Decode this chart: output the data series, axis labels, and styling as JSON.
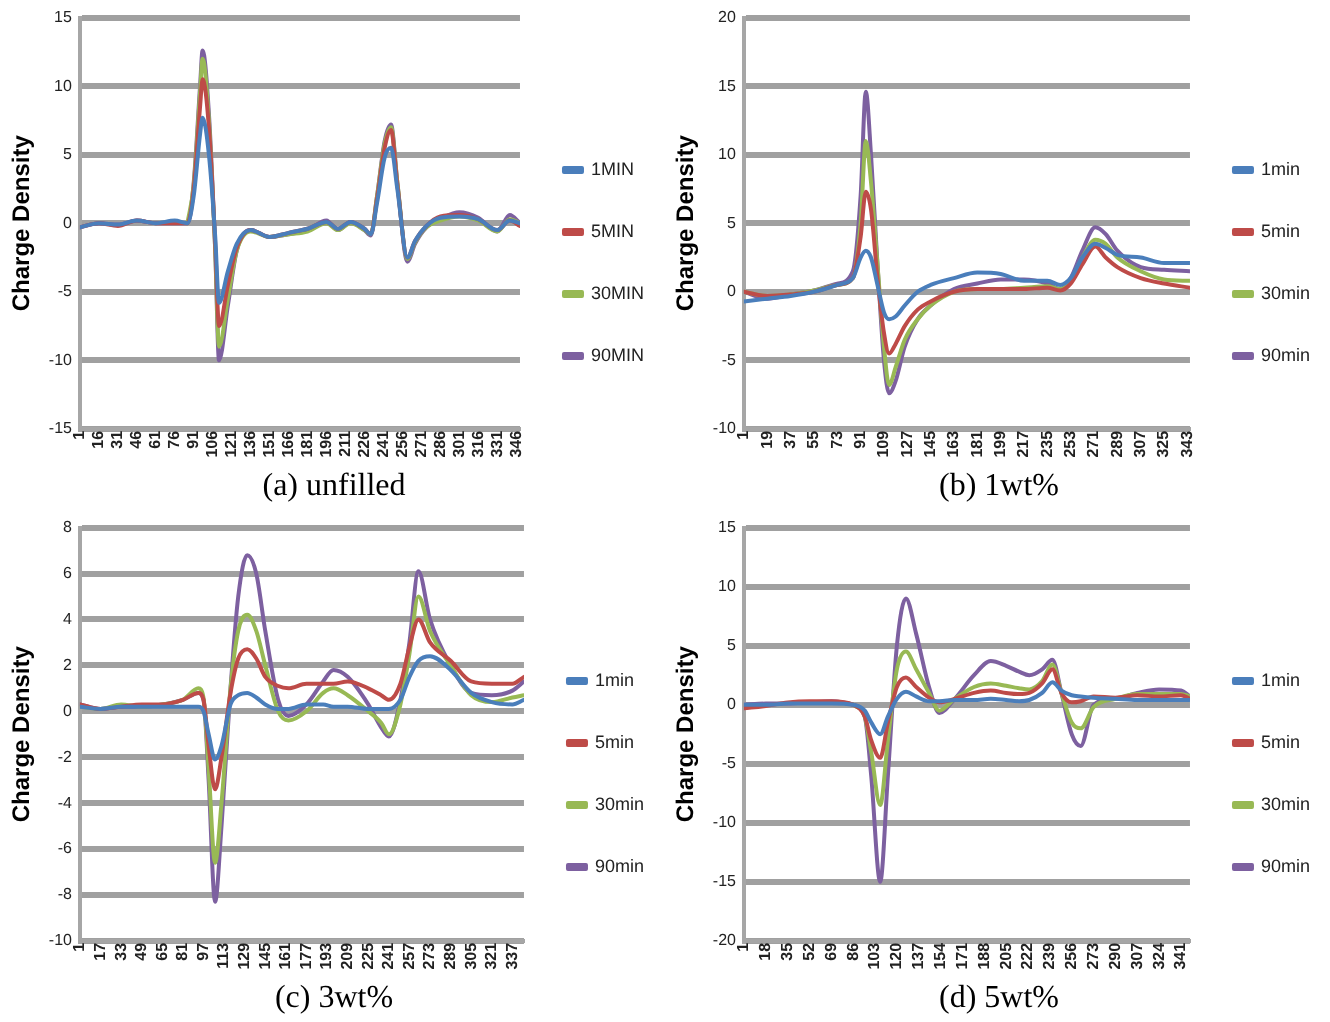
{
  "chart_data": [
    {
      "type": "line",
      "title": "(a) unfilled",
      "ylabel": "Charge Density",
      "grid": "y",
      "legend": "right",
      "marker": "none",
      "line_style": "solid",
      "x": [
        1,
        16,
        31,
        46,
        61,
        76,
        86,
        91,
        96,
        98,
        103,
        108,
        111,
        118,
        125,
        136,
        151,
        166,
        181,
        196,
        205,
        215,
        226,
        231,
        236,
        242,
        247,
        252,
        260,
        266,
        275,
        286,
        301,
        316,
        331,
        341,
        349
      ],
      "xlim": [
        1,
        349
      ],
      "xticks": [
        1,
        16,
        31,
        46,
        61,
        76,
        91,
        106,
        121,
        136,
        151,
        166,
        181,
        196,
        211,
        226,
        241,
        256,
        271,
        286,
        301,
        316,
        331,
        346
      ],
      "ylim": [
        -15,
        15
      ],
      "yticks": [
        -15,
        -10,
        -5,
        0,
        5,
        10,
        15
      ],
      "series": [
        {
          "name": "1MIN",
          "color": "#4a7ebb",
          "values": [
            -0.3,
            0,
            -0.1,
            0.2,
            0,
            0.2,
            0,
            2,
            6.5,
            7.7,
            5,
            -1,
            -5.8,
            -3.5,
            -1.5,
            -0.5,
            -1,
            -0.7,
            -0.4,
            0.1,
            -0.4,
            0.1,
            -0.4,
            -0.8,
            1.5,
            4.8,
            5.5,
            2.5,
            -2.5,
            -1.3,
            -0.2,
            0.4,
            0.5,
            0.3,
            -0.5,
            0.2,
            0
          ]
        },
        {
          "name": "5MIN",
          "color": "#be4b48",
          "values": [
            -0.3,
            0,
            -0.2,
            0.2,
            0,
            0,
            0,
            2.5,
            8.5,
            10.5,
            7,
            -1.5,
            -7.5,
            -4.5,
            -1.8,
            -0.5,
            -1,
            -0.7,
            -0.4,
            0.1,
            -0.4,
            0.1,
            -0.4,
            -0.8,
            1.8,
            5.5,
            6.8,
            2.8,
            -2.5,
            -1.3,
            -0.2,
            0.5,
            0.6,
            0.3,
            -0.5,
            0.2,
            -0.2
          ]
        },
        {
          "name": "30MIN",
          "color": "#98b954",
          "values": [
            null,
            null,
            null,
            null,
            null,
            null,
            0,
            2.8,
            9.5,
            12,
            7.5,
            -2,
            -9,
            -5.5,
            -2,
            -0.6,
            -1,
            -0.8,
            -0.6,
            0,
            -0.5,
            0,
            -0.5,
            -0.8,
            2,
            5.8,
            7,
            3,
            -2.6,
            -1.4,
            -0.3,
            0.2,
            0.5,
            0.2,
            -0.6,
            0.3,
            0
          ]
        },
        {
          "name": "90MIN",
          "color": "#7d60a0",
          "values": [
            -0.3,
            0,
            -0.1,
            0.2,
            0,
            0,
            0,
            3,
            10,
            12.6,
            8,
            -2,
            -10,
            -6,
            -2,
            -0.5,
            -1,
            -0.8,
            -0.5,
            0.2,
            -0.5,
            0.1,
            -0.5,
            -0.9,
            2,
            6,
            7.2,
            3,
            -2.8,
            -1.5,
            -0.3,
            0.3,
            0.8,
            0.4,
            -0.6,
            0.6,
            0
          ]
        }
      ]
    },
    {
      "type": "line",
      "title": "(b) 1wt%",
      "ylabel": "Charge Density",
      "grid": "y",
      "legend": "right",
      "marker": "none",
      "line_style": "solid",
      "x": [
        1,
        19,
        37,
        55,
        73,
        85,
        91,
        95,
        99,
        104,
        109,
        113,
        118,
        125,
        135,
        145,
        163,
        181,
        199,
        217,
        235,
        245,
        253,
        262,
        272,
        280,
        289,
        307,
        325,
        345
      ],
      "xlim": [
        1,
        345
      ],
      "xticks": [
        1,
        19,
        37,
        55,
        73,
        91,
        109,
        127,
        145,
        163,
        181,
        199,
        217,
        235,
        253,
        271,
        289,
        307,
        325,
        343
      ],
      "ylim": [
        -10,
        20
      ],
      "yticks": [
        -10,
        -5,
        0,
        5,
        10,
        15,
        20
      ],
      "series": [
        {
          "name": "1min",
          "color": "#4a7ebb",
          "values": [
            -0.7,
            -0.5,
            -0.3,
            0,
            0.5,
            1,
            2.5,
            3,
            2.5,
            0.5,
            -1.5,
            -2,
            -1.8,
            -1,
            0,
            0.5,
            1,
            1.4,
            1.3,
            0.8,
            0.8,
            0.5,
            1,
            2.5,
            3.5,
            3.2,
            2.7,
            2.5,
            2.1,
            2.1
          ]
        },
        {
          "name": "5min",
          "color": "#be4b48",
          "values": [
            0,
            -0.3,
            -0.2,
            0,
            0.5,
            1,
            4,
            7.3,
            6,
            1,
            -3,
            -4.5,
            -3.8,
            -2.5,
            -1.3,
            -0.7,
            0,
            0.2,
            0.2,
            0.2,
            0.3,
            0.1,
            0.6,
            2,
            3.3,
            2.5,
            1.8,
            1,
            0.6,
            0.3
          ]
        },
        {
          "name": "30min",
          "color": "#98b954",
          "values": [
            0,
            -0.3,
            -0.2,
            0.1,
            0.5,
            1,
            5,
            11,
            8,
            2,
            -4,
            -6.8,
            -5.5,
            -3.5,
            -2,
            -1,
            0,
            0.2,
            0.2,
            0.3,
            0.4,
            0.2,
            0.8,
            2.5,
            3.8,
            3.5,
            2.5,
            1.5,
            0.9,
            0.8
          ]
        },
        {
          "name": "90min",
          "color": "#7d60a0",
          "values": [
            0,
            -0.5,
            -0.2,
            0.1,
            0.6,
            1.5,
            7,
            14.6,
            10,
            2,
            -5,
            -7.4,
            -6.5,
            -4,
            -2,
            -1,
            0.2,
            0.6,
            0.9,
            0.9,
            0.6,
            0.2,
            1,
            3,
            4.7,
            4.2,
            3,
            1.8,
            1.6,
            1.5
          ]
        }
      ]
    },
    {
      "type": "line",
      "title": "(c) 3wt%",
      "ylabel": "Charge Density",
      "grid": "y",
      "legend": "right",
      "marker": "none",
      "line_style": "solid",
      "x": [
        1,
        17,
        33,
        49,
        65,
        81,
        93,
        97,
        101,
        106,
        111,
        118,
        124,
        131,
        138,
        145,
        155,
        163,
        177,
        190,
        198,
        209,
        225,
        235,
        241,
        250,
        257,
        264,
        273,
        289,
        305,
        321,
        337,
        346
      ],
      "xlim": [
        1,
        346
      ],
      "xticks": [
        1,
        17,
        33,
        49,
        65,
        81,
        97,
        113,
        129,
        145,
        161,
        177,
        193,
        209,
        225,
        241,
        257,
        273,
        289,
        305,
        321,
        337
      ],
      "ylim": [
        -10,
        8
      ],
      "yticks": [
        -10,
        -8,
        -6,
        -4,
        -2,
        0,
        2,
        4,
        6,
        8
      ],
      "series": [
        {
          "name": "1min",
          "color": "#4a7ebb",
          "values": [
            0.2,
            0.1,
            0.2,
            0.2,
            0.2,
            0.2,
            0.2,
            0,
            -1,
            -2.1,
            -1.5,
            0.3,
            0.7,
            0.8,
            0.6,
            0.3,
            0.1,
            0.1,
            0.3,
            0.3,
            0.2,
            0.2,
            0.1,
            0.1,
            0.1,
            0.5,
            1.5,
            2.2,
            2.4,
            1.8,
            0.8,
            0.4,
            0.3,
            0.5
          ]
        },
        {
          "name": "5min",
          "color": "#be4b48",
          "values": [
            0.3,
            0.1,
            0.2,
            0.3,
            0.3,
            0.5,
            0.8,
            0.5,
            -1.5,
            -3.4,
            -2,
            0.8,
            2.3,
            2.7,
            2.3,
            1.5,
            1.1,
            1,
            1.2,
            1.2,
            1.2,
            1.3,
            1,
            0.7,
            0.5,
            1.2,
            2.8,
            4,
            3,
            2.2,
            1.3,
            1.2,
            1.2,
            1.5
          ]
        },
        {
          "name": "30min",
          "color": "#98b954",
          "values": [
            0.2,
            0.1,
            0.3,
            0.2,
            0.3,
            0.5,
            1,
            0.6,
            -2.5,
            -6.6,
            -4,
            1,
            3.5,
            4.2,
            3.5,
            2,
            0,
            -0.4,
            0,
            0.8,
            1,
            0.7,
            0,
            -0.5,
            -1,
            0.3,
            2.5,
            5,
            3.5,
            2,
            0.7,
            0.4,
            0.6,
            0.7
          ]
        },
        {
          "name": "90min",
          "color": "#7d60a0",
          "values": [
            0.3,
            0.1,
            0.2,
            0.2,
            0.3,
            0.5,
            0.8,
            0.5,
            -3,
            -8.3,
            -5,
            1,
            5,
            6.8,
            6,
            3.5,
            0.5,
            -0.2,
            0.3,
            1.3,
            1.8,
            1.5,
            0.3,
            -0.7,
            -1.1,
            0.5,
            3,
            6.1,
            4,
            2,
            0.8,
            0.7,
            0.9,
            1.3
          ]
        }
      ]
    },
    {
      "type": "line",
      "title": "(d) 5wt%",
      "ylabel": "Charge Density",
      "grid": "y",
      "legend": "right",
      "marker": "none",
      "line_style": "solid",
      "x": [
        1,
        18,
        35,
        52,
        69,
        86,
        95,
        100,
        107,
        113,
        120,
        127,
        135,
        145,
        153,
        165,
        180,
        193,
        205,
        215,
        223,
        233,
        241,
        248,
        256,
        263,
        273,
        290,
        307,
        324,
        341,
        348
      ],
      "xlim": [
        1,
        348
      ],
      "xticks": [
        1,
        18,
        35,
        52,
        69,
        86,
        103,
        120,
        137,
        154,
        171,
        188,
        205,
        222,
        239,
        256,
        273,
        290,
        307,
        324,
        341
      ],
      "ylim": [
        -20,
        15
      ],
      "yticks": [
        -20,
        -15,
        -10,
        -5,
        0,
        5,
        10,
        15
      ],
      "series": [
        {
          "name": "1min",
          "color": "#4a7ebb",
          "values": [
            0,
            0,
            0.1,
            0.1,
            0.1,
            0,
            -0.5,
            -1.5,
            -2.5,
            -1,
            0.5,
            1.1,
            0.7,
            0.3,
            0.3,
            0.4,
            0.4,
            0.5,
            0.4,
            0.3,
            0.4,
            1,
            1.9,
            1.2,
            0.8,
            0.7,
            0.6,
            0.5,
            0.4,
            0.4,
            0.4,
            0.4
          ]
        },
        {
          "name": "5min",
          "color": "#be4b48",
          "values": [
            -0.3,
            -0.1,
            0.2,
            0.3,
            0.3,
            0,
            -1,
            -3,
            -4.5,
            -1.5,
            1.5,
            2.3,
            1.5,
            0.6,
            0.2,
            0.5,
            1,
            1.2,
            1,
            0.9,
            1,
            1.8,
            3,
            1,
            0.2,
            0.3,
            0.7,
            0.6,
            0.8,
            0.7,
            0.8,
            0.5
          ]
        },
        {
          "name": "30min",
          "color": "#98b954",
          "values": [
            null,
            null,
            null,
            null,
            null,
            0,
            -1,
            -4,
            -8.5,
            -3,
            3,
            4.5,
            3,
            1,
            -0.5,
            0.5,
            1.5,
            1.8,
            1.6,
            1.4,
            1.3,
            2,
            3.4,
            1,
            -1.5,
            -2,
            -0.2,
            0.5,
            0.9,
            0.9,
            0.9,
            0.7
          ]
        },
        {
          "name": "90min",
          "color": "#7d60a0",
          "values": [
            0,
            0.1,
            0.1,
            0.2,
            0.3,
            0,
            -1,
            -6,
            -15,
            -6,
            5,
            9,
            6,
            1.5,
            -0.7,
            0.5,
            2.5,
            3.7,
            3.3,
            2.8,
            2.5,
            3,
            3.8,
            1,
            -2.5,
            -3.5,
            0,
            0.5,
            1,
            1.3,
            1.2,
            0.7
          ]
        }
      ]
    }
  ]
}
